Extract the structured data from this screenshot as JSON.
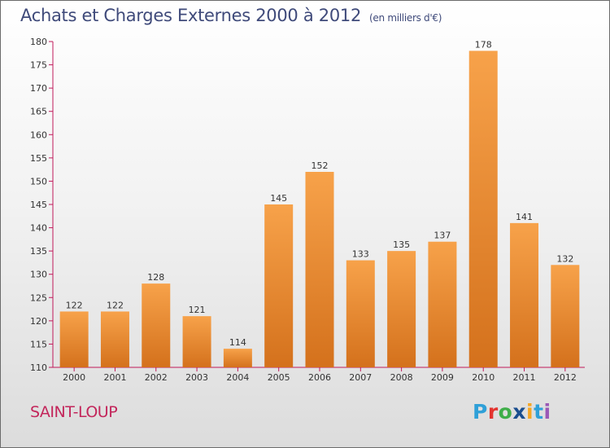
{
  "title": "Achats et Charges Externes 2000 à 2012",
  "unit_note": "(en milliers d'€)",
  "commune": "SAINT-LOUP",
  "logo": {
    "letters": [
      "P",
      "r",
      "o",
      "x",
      "i",
      "t",
      "i"
    ],
    "colors": [
      "#2fa0d8",
      "#e3342f",
      "#3fae49",
      "#1a4e8f",
      "#f5a623",
      "#2fa0d8",
      "#9b59b6"
    ]
  },
  "colors": {
    "bar_top": "#f7a24a",
    "bar_bottom": "#d4711c",
    "title": "#3f4a7a",
    "commune": "#c3265b",
    "axis": "#c0195a"
  },
  "chart_data": {
    "type": "bar",
    "categories": [
      "2000",
      "2001",
      "2002",
      "2003",
      "2004",
      "2005",
      "2006",
      "2007",
      "2008",
      "2009",
      "2010",
      "2011",
      "2012"
    ],
    "values": [
      122,
      122,
      128,
      121,
      114,
      145,
      152,
      133,
      135,
      137,
      178,
      141,
      132
    ],
    "ylim": [
      110,
      180
    ],
    "yticks": [
      110,
      115,
      120,
      125,
      130,
      135,
      140,
      145,
      150,
      155,
      160,
      165,
      170,
      175,
      180
    ],
    "grid": false,
    "data_labels": true
  }
}
